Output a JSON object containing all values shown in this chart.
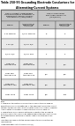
{
  "title_line1": "Table 250-95 Grounding Electrode Conductors for",
  "title_line2": "Alternating-Current Systems",
  "left_header": "Size of Largest Ungrounded\nService-Entrance Conductor or\nEquivalent Area for Parallel\nConductors* (AWG/kcmil)",
  "right_header": "Size of Grounding\nElectrode Conductor\n(AWG/kcmil)",
  "sub_headers": [
    "Copper",
    "Aluminum or\nCopper-Clad\nAluminum",
    "Copper",
    "Aluminum or\nCopper-Clad\nAluminum"
  ],
  "rows": [
    [
      "2 or smaller",
      "1/0 or smaller",
      "8",
      "6"
    ],
    [
      "1 or 1/0",
      "2/0 or 3/0",
      "6",
      "4"
    ],
    [
      "2/0 or 3/0",
      "4/0 or 250",
      "4",
      "2"
    ],
    [
      "Over 3/0\nthrough 350",
      "Over 250\nthrough 500",
      "2",
      "1/0"
    ],
    [
      "Over 350\nthrough 600",
      "Over 500\nthrough 900",
      "1/0",
      "3/0"
    ],
    [
      "Over 600\nthrough 1100",
      "Over 900\nthrough 1750",
      "2/0",
      "4/0"
    ],
    [
      "Over 1100",
      "Over 1750",
      "3/0",
      "250"
    ]
  ],
  "notes": [
    "Notes:",
    "1. Where multiple sets of service-entrance conductors are used as",
    "permitted in 230-40, Exception No. 1, the equivalent area of the largest",
    "set shall be determined by multiplying the area of the largest conductor",
    "in each set by the number of conductors in parallel in each set.",
    "2. Where there are no service-entrance conductors, the grounding",
    "electrode conductor size shall be determined by the equivalent area of",
    "the largest service-entrance conductor required for the load to be",
    "served.",
    "*This table also applies to the derived conductors of separately de-",
    "rived systems.",
    "**See installation restrictions in 250-92(a)."
  ],
  "bg_color": "#ffffff",
  "header_bg": "#c8c8c8",
  "row_bg_odd": "#ffffff",
  "row_bg_even": "#ebebeb",
  "border_color": "#555555",
  "text_color": "#000000"
}
